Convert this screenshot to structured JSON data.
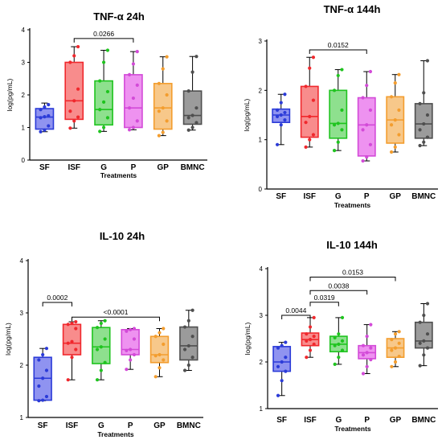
{
  "chart_data": [
    {
      "type": "box",
      "title": "TNF-α 24h",
      "ylabel": "log(pg/mL)",
      "xlabel": "Treatments",
      "ylim": [
        0,
        4
      ],
      "yticks": [
        "0",
        "1",
        "2",
        "3",
        "4"
      ],
      "categories": [
        "SF",
        "ISF",
        "G",
        "P",
        "GP",
        "BMNC"
      ],
      "colors": [
        "#2b3bd8",
        "#f0282d",
        "#1fc41f",
        "#d34ad8",
        "#f39d2e",
        "#4f4f4f"
      ],
      "fills": [
        "#8f93f0",
        "#f88c8c",
        "#8ee08e",
        "#ee92f0",
        "#f7c88a",
        "#9b9b9b"
      ],
      "boxes": [
        {
          "min": 0.87,
          "q1": 0.95,
          "median": 1.32,
          "q3": 1.58,
          "max": 1.75,
          "points": [
            0.87,
            0.92,
            1.05,
            1.3,
            1.33,
            1.36,
            1.55,
            1.63,
            1.7
          ]
        },
        {
          "min": 0.98,
          "q1": 1.25,
          "median": 1.82,
          "q3": 3.0,
          "max": 3.48,
          "points": [
            0.98,
            1.2,
            1.32,
            1.5,
            1.82,
            2.18,
            3.0,
            3.2,
            3.48
          ]
        },
        {
          "min": 0.88,
          "q1": 1.08,
          "median": 1.55,
          "q3": 2.43,
          "max": 3.37,
          "points": [
            0.88,
            1.0,
            1.3,
            1.55,
            1.78,
            2.1,
            2.43,
            3.0,
            3.37
          ]
        },
        {
          "min": 0.93,
          "q1": 1.0,
          "median": 1.6,
          "q3": 2.62,
          "max": 3.33,
          "points": [
            0.93,
            1.0,
            1.2,
            1.6,
            1.9,
            2.3,
            2.62,
            2.95,
            3.33
          ]
        },
        {
          "min": 0.75,
          "q1": 0.95,
          "median": 1.6,
          "q3": 2.35,
          "max": 3.17,
          "points": [
            0.75,
            0.85,
            1.2,
            1.5,
            1.6,
            2.0,
            2.35,
            2.8,
            3.17
          ]
        },
        {
          "min": 0.92,
          "q1": 1.1,
          "median": 1.37,
          "q3": 2.12,
          "max": 3.18,
          "points": [
            0.92,
            1.0,
            1.15,
            1.3,
            1.37,
            1.6,
            2.12,
            2.7,
            3.18
          ]
        }
      ],
      "brackets": [
        {
          "from": 1,
          "to": 3,
          "label": "0.0266",
          "y": 3.73
        }
      ]
    },
    {
      "type": "box",
      "title": "TNF-α 144h",
      "ylabel": "log(pg/mL)",
      "xlabel": "Treatments",
      "ylim": [
        0,
        3
      ],
      "yticks": [
        "0",
        "1",
        "2",
        "3"
      ],
      "categories": [
        "SF",
        "ISF",
        "G",
        "P",
        "GP",
        "BMNC"
      ],
      "colors": [
        "#2b3bd8",
        "#f0282d",
        "#1fc41f",
        "#d34ad8",
        "#f39d2e",
        "#4f4f4f"
      ],
      "fills": [
        "#8f93f0",
        "#f88c8c",
        "#8ee08e",
        "#ee92f0",
        "#f7c88a",
        "#9b9b9b"
      ],
      "boxes": [
        {
          "min": 0.9,
          "q1": 1.35,
          "median": 1.5,
          "q3": 1.62,
          "max": 1.92,
          "points": [
            0.9,
            1.3,
            1.4,
            1.47,
            1.5,
            1.55,
            1.6,
            1.75,
            1.92
          ]
        },
        {
          "min": 0.85,
          "q1": 1.05,
          "median": 1.47,
          "q3": 2.08,
          "max": 2.67,
          "points": [
            0.85,
            1.0,
            1.1,
            1.35,
            1.47,
            1.8,
            2.08,
            2.45,
            2.67
          ]
        },
        {
          "min": 0.78,
          "q1": 1.03,
          "median": 1.33,
          "q3": 2.0,
          "max": 2.42,
          "points": [
            0.78,
            0.95,
            1.2,
            1.3,
            1.33,
            1.6,
            2.0,
            2.3,
            2.42
          ]
        },
        {
          "min": 0.57,
          "q1": 0.67,
          "median": 1.3,
          "q3": 1.85,
          "max": 2.38,
          "points": [
            0.57,
            0.65,
            0.9,
            1.2,
            1.3,
            1.6,
            1.85,
            2.1,
            2.38
          ]
        },
        {
          "min": 0.75,
          "q1": 0.93,
          "median": 1.4,
          "q3": 1.87,
          "max": 2.32,
          "points": [
            0.75,
            0.85,
            1.1,
            1.3,
            1.4,
            1.6,
            1.87,
            2.15,
            2.32
          ]
        },
        {
          "min": 0.88,
          "q1": 1.03,
          "median": 1.32,
          "q3": 1.73,
          "max": 2.6,
          "points": [
            0.88,
            0.95,
            1.05,
            1.2,
            1.32,
            1.5,
            1.73,
            1.95,
            2.6
          ]
        }
      ],
      "brackets": [
        {
          "from": 1,
          "to": 3,
          "label": "0.0152",
          "y": 2.82
        }
      ]
    },
    {
      "type": "box",
      "title": "IL-10 24h",
      "ylabel": "log(pg/mL)",
      "xlabel": "Treatments",
      "ylim": [
        1,
        4
      ],
      "yticks": [
        "1",
        "2",
        "3",
        "4"
      ],
      "categories": [
        "SF",
        "ISF",
        "G",
        "P",
        "GP",
        "BMNC"
      ],
      "colors": [
        "#2b3bd8",
        "#f0282d",
        "#1fc41f",
        "#d34ad8",
        "#f39d2e",
        "#4f4f4f"
      ],
      "fills": [
        "#8f93f0",
        "#f88c8c",
        "#8ee08e",
        "#ee92f0",
        "#f7c88a",
        "#9b9b9b"
      ],
      "boxes": [
        {
          "min": 1.32,
          "q1": 1.33,
          "median": 1.75,
          "q3": 2.15,
          "max": 2.32,
          "points": [
            1.32,
            1.33,
            1.4,
            1.6,
            1.75,
            1.9,
            2.1,
            2.2,
            2.32
          ]
        },
        {
          "min": 1.72,
          "q1": 2.2,
          "median": 2.42,
          "q3": 2.78,
          "max": 2.83,
          "points": [
            1.72,
            2.15,
            2.3,
            2.42,
            2.45,
            2.7,
            2.78,
            2.8,
            2.83
          ]
        },
        {
          "min": 1.72,
          "q1": 2.03,
          "median": 2.35,
          "q3": 2.72,
          "max": 2.85,
          "points": [
            1.72,
            1.9,
            2.05,
            2.3,
            2.35,
            2.5,
            2.72,
            2.8,
            2.85
          ]
        },
        {
          "min": 1.92,
          "q1": 2.2,
          "median": 2.3,
          "q3": 2.68,
          "max": 2.7,
          "points": [
            1.92,
            2.1,
            2.2,
            2.28,
            2.3,
            2.5,
            2.65,
            2.68,
            2.7
          ]
        },
        {
          "min": 1.78,
          "q1": 2.05,
          "median": 2.2,
          "q3": 2.55,
          "max": 2.7,
          "points": [
            1.78,
            1.95,
            2.1,
            2.18,
            2.2,
            2.4,
            2.55,
            2.62,
            2.7
          ]
        },
        {
          "min": 1.9,
          "q1": 2.1,
          "median": 2.37,
          "q3": 2.73,
          "max": 3.05,
          "points": [
            1.9,
            2.0,
            2.15,
            2.3,
            2.37,
            2.55,
            2.73,
            2.85,
            3.05
          ]
        }
      ],
      "brackets": [
        {
          "from": 0,
          "to": 1,
          "label": "0.0002",
          "y": 3.2
        },
        {
          "from": 1,
          "to": 4,
          "label": "<0.0001",
          "y": 2.92
        }
      ]
    },
    {
      "type": "box",
      "title": "IL-10 144h",
      "ylabel": "log(pg/mL)",
      "xlabel": "Treatments",
      "ylim": [
        1,
        4
      ],
      "yticks": [
        "1",
        "2",
        "3",
        "4"
      ],
      "categories": [
        "SF",
        "ISF",
        "G",
        "P",
        "GP",
        "BMNC"
      ],
      "colors": [
        "#2b3bd8",
        "#f0282d",
        "#1fc41f",
        "#d34ad8",
        "#f39d2e",
        "#4f4f4f"
      ],
      "fills": [
        "#8f93f0",
        "#f88c8c",
        "#8ee08e",
        "#ee92f0",
        "#f7c88a",
        "#9b9b9b"
      ],
      "boxes": [
        {
          "min": 1.28,
          "q1": 1.8,
          "median": 2.0,
          "q3": 2.33,
          "max": 2.42,
          "points": [
            1.28,
            1.6,
            1.8,
            1.9,
            2.0,
            2.1,
            2.3,
            2.35,
            2.42
          ]
        },
        {
          "min": 2.1,
          "q1": 2.35,
          "median": 2.48,
          "q3": 2.62,
          "max": 2.95,
          "points": [
            2.1,
            2.25,
            2.38,
            2.45,
            2.48,
            2.55,
            2.6,
            2.75,
            2.95
          ]
        },
        {
          "min": 1.95,
          "q1": 2.22,
          "median": 2.38,
          "q3": 2.55,
          "max": 2.95,
          "points": [
            1.95,
            2.1,
            2.25,
            2.35,
            2.38,
            2.45,
            2.52,
            2.6,
            2.95
          ]
        },
        {
          "min": 1.75,
          "q1": 2.07,
          "median": 2.2,
          "q3": 2.35,
          "max": 2.8,
          "points": [
            1.75,
            1.9,
            2.05,
            2.15,
            2.2,
            2.3,
            2.35,
            2.55,
            2.8
          ]
        },
        {
          "min": 1.9,
          "q1": 2.1,
          "median": 2.3,
          "q3": 2.5,
          "max": 2.65,
          "points": [
            1.9,
            2.0,
            2.12,
            2.25,
            2.3,
            2.4,
            2.48,
            2.6,
            2.65
          ]
        },
        {
          "min": 1.92,
          "q1": 2.3,
          "median": 2.45,
          "q3": 2.85,
          "max": 3.25,
          "points": [
            1.92,
            2.15,
            2.3,
            2.4,
            2.45,
            2.6,
            2.85,
            3.0,
            3.25
          ]
        }
      ],
      "brackets": [
        {
          "from": 0,
          "to": 1,
          "label": "0.0044",
          "y": 3.0
        },
        {
          "from": 1,
          "to": 2,
          "label": "0.0319",
          "y": 3.28
        },
        {
          "from": 1,
          "to": 3,
          "label": "0.0038",
          "y": 3.53
        },
        {
          "from": 1,
          "to": 4,
          "label": "0.0153",
          "y": 3.82
        }
      ]
    }
  ]
}
